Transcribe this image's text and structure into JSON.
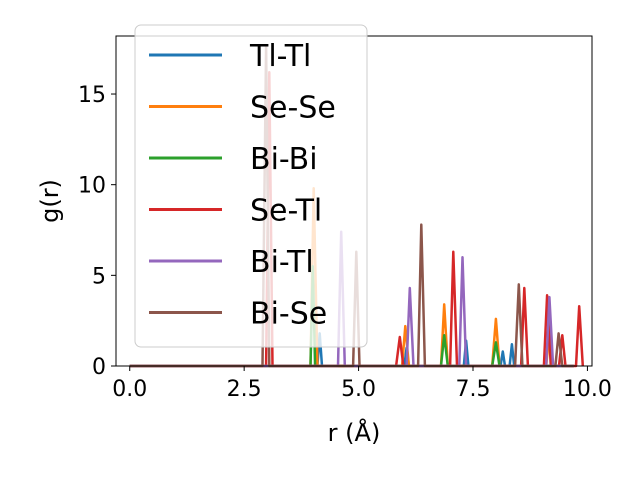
{
  "chart_data": {
    "type": "line",
    "xlabel": "r (Å)",
    "ylabel": "g(r)",
    "xlim": [
      -0.3,
      10.1
    ],
    "ylim": [
      0,
      18.2
    ],
    "xticks": [
      0.0,
      2.5,
      5.0,
      7.5,
      10.0
    ],
    "xtick_labels": [
      "0.0",
      "2.5",
      "5.0",
      "7.5",
      "10.0"
    ],
    "yticks": [
      0,
      5,
      10,
      15
    ],
    "ytick_labels": [
      "0",
      "5",
      "10",
      "15"
    ],
    "grid": false,
    "legend_position": "upper-left",
    "series": [
      {
        "name": "Tl-Tl",
        "color": "#1f77b4",
        "x": [
          0,
          4.1,
          4.15,
          4.2,
          6.0,
          6.05,
          6.1,
          7.3,
          7.35,
          7.4,
          8.1,
          8.15,
          8.2,
          8.3,
          8.35,
          8.4,
          9.7
        ],
        "y": [
          0,
          0,
          1.8,
          0,
          0,
          1.0,
          0,
          0,
          1.4,
          0,
          0,
          0.8,
          0,
          0,
          1.2,
          0,
          0
        ]
      },
      {
        "name": "Se-Se",
        "color": "#ff7f0e",
        "x": [
          0,
          3.95,
          4.02,
          4.1,
          5.95,
          6.02,
          6.1,
          6.8,
          6.87,
          6.95,
          7.92,
          8.0,
          8.08,
          9.1,
          9.17,
          9.25,
          9.7
        ],
        "y": [
          0,
          0,
          9.8,
          0,
          0,
          2.2,
          0,
          0,
          3.4,
          0,
          0,
          2.6,
          0,
          0,
          1.9,
          0,
          0
        ]
      },
      {
        "name": "Bi-Bi",
        "color": "#2ca02c",
        "x": [
          0,
          3.95,
          4.0,
          4.05,
          6.8,
          6.87,
          6.95,
          7.92,
          8.0,
          8.08,
          9.7
        ],
        "y": [
          0,
          0,
          5.5,
          0,
          0,
          1.7,
          0,
          0,
          1.3,
          0,
          0
        ]
      },
      {
        "name": "Se-Tl",
        "color": "#d62728",
        "x": [
          0,
          2.98,
          3.05,
          3.12,
          5.82,
          5.9,
          5.98,
          7.0,
          7.07,
          7.15,
          8.55,
          8.62,
          8.7,
          9.05,
          9.12,
          9.2,
          9.38,
          9.45,
          9.52,
          9.75,
          9.82,
          9.9
        ],
        "y": [
          0,
          0,
          16.2,
          0,
          0,
          1.6,
          0,
          0,
          6.3,
          0,
          0,
          4.3,
          0,
          0,
          3.9,
          0,
          0,
          1.7,
          0,
          0,
          3.3,
          0
        ]
      },
      {
        "name": "Bi-Tl",
        "color": "#9467bd",
        "x": [
          0,
          4.55,
          4.62,
          4.7,
          6.05,
          6.12,
          6.2,
          7.2,
          7.27,
          7.35,
          9.1,
          9.17,
          9.25,
          9.7
        ],
        "y": [
          0,
          0,
          7.4,
          0,
          0,
          4.3,
          0,
          0,
          6.0,
          0,
          0,
          3.8,
          0,
          0
        ]
      },
      {
        "name": "Bi-Se",
        "color": "#8c564b",
        "x": [
          0,
          2.9,
          2.98,
          3.05,
          4.88,
          4.95,
          5.02,
          6.3,
          6.37,
          6.45,
          8.42,
          8.5,
          8.58,
          9.3,
          9.37,
          9.45,
          9.7
        ],
        "y": [
          0,
          0,
          17.7,
          0,
          0,
          6.3,
          0,
          0,
          7.8,
          0,
          0,
          4.5,
          0,
          0,
          1.8,
          0,
          0
        ]
      }
    ]
  }
}
